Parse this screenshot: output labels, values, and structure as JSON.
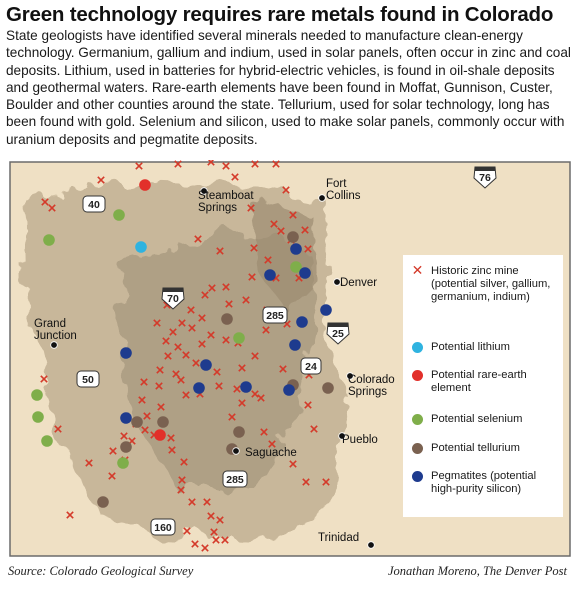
{
  "title": "Green technology requires rare metals found in Colorado",
  "intro": "State geologists have identified several minerals needed to manufacture clean-energy technology. Germanium, gallium and indium, used in solar panels, often occur in zinc and coal deposits. Lithium, used in batteries for hybrid-electric vehicles, is found in oil-shale deposits and geothermal waters. Rare-earth elements have been found in Moffat, Gunnison, Custer, Boulder and other counties around the state. Tellurium, used for solar technology, long has been found with gold. Selenium and silicon, used to make solar panels, commonly occur with uranium deposits and pegmatite deposits.",
  "colors": {
    "zinc_mine": "#d43a2a",
    "lithium": "#2fb3e0",
    "rare_earth": "#e2302a",
    "selenium": "#7fae4a",
    "tellurium": "#7a6150",
    "pegmatite": "#1e3b8e",
    "plains": "#efe0c4",
    "mountains": "#b9a98e",
    "state_border": "#6b6b6b"
  },
  "legend": {
    "zinc": "Historic zinc mine (potential silver, gallium, germanium, indium)",
    "lithium": "Potential lithium",
    "rare_earth": "Potential rare-earth element",
    "selenium": "Potential selenium",
    "tellurium": "Potential tellurium",
    "pegmatite": "Pegmatites (potential high-purity silicon)"
  },
  "cities": {
    "steamboat": "Steamboat Springs",
    "fort_collins": "Fort Collins",
    "denver": "Denver",
    "grand_junction": "Grand Junction",
    "colorado_springs": "Colorado Springs",
    "pueblo": "Pueblo",
    "saguache": "Saguache",
    "trinidad": "Trinidad"
  },
  "highways": {
    "i76": "76",
    "us40": "40",
    "i70": "70",
    "us285": "285",
    "i25": "25",
    "us24": "24",
    "us50": "50",
    "us160": "160"
  },
  "footer": {
    "source": "Source: Colorado Geological Survey",
    "credit": "Jonathan Moreno, The Denver Post"
  }
}
